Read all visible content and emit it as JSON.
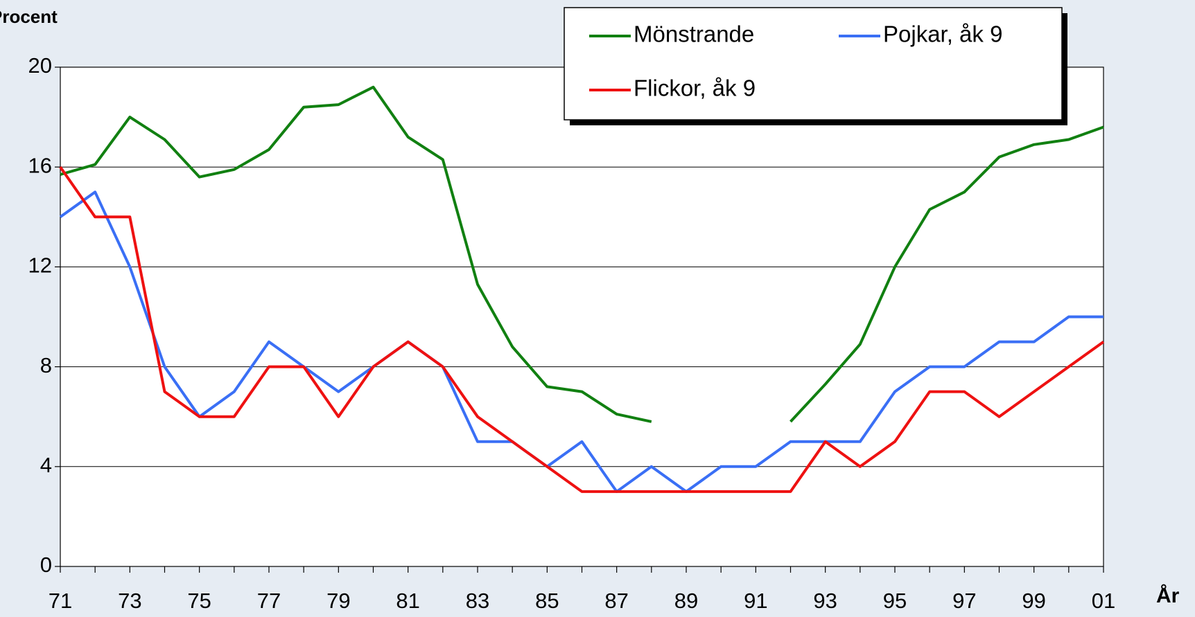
{
  "chart_data": {
    "type": "line",
    "y_label": "Procent",
    "x_label": "År",
    "categories": [
      "71",
      null,
      "73",
      null,
      "75",
      null,
      "77",
      null,
      "79",
      null,
      "81",
      null,
      "83",
      null,
      "85",
      null,
      "87",
      null,
      "89",
      null,
      "91",
      null,
      "93",
      null,
      "95",
      null,
      "97",
      null,
      "99",
      null,
      "01"
    ],
    "series": [
      {
        "name": "Mönstrande",
        "color": "#118011",
        "values": [
          15.7,
          16.1,
          18.0,
          17.1,
          15.6,
          15.9,
          16.7,
          18.4,
          18.5,
          19.2,
          17.2,
          16.3,
          11.3,
          8.8,
          7.2,
          7.0,
          6.1,
          5.8,
          null,
          null,
          null,
          5.8,
          7.3,
          8.9,
          12.0,
          14.3,
          15.0,
          16.4,
          16.9,
          17.1,
          17.6
        ]
      },
      {
        "name": "Pojkar, åk 9",
        "color": "#3a6ff5",
        "values": [
          14,
          15,
          12,
          8,
          6,
          7,
          9,
          8,
          7,
          8,
          9,
          8,
          5,
          5,
          4,
          5,
          3,
          4,
          3,
          4,
          4,
          5,
          5,
          5,
          7,
          8,
          8,
          9,
          9,
          10,
          10
        ]
      },
      {
        "name": "Flickor, åk 9",
        "color": "#ee1111",
        "values": [
          16,
          14,
          14,
          7,
          6,
          6,
          8,
          8,
          6,
          8,
          9,
          8,
          6,
          5,
          4,
          3,
          3,
          3,
          3,
          3,
          3,
          3,
          5,
          4,
          5,
          7,
          7,
          6,
          7,
          8,
          9
        ]
      }
    ],
    "ylim": [
      0,
      20
    ],
    "yticks": [
      0,
      4,
      8,
      12,
      16,
      20
    ],
    "grid": true
  }
}
